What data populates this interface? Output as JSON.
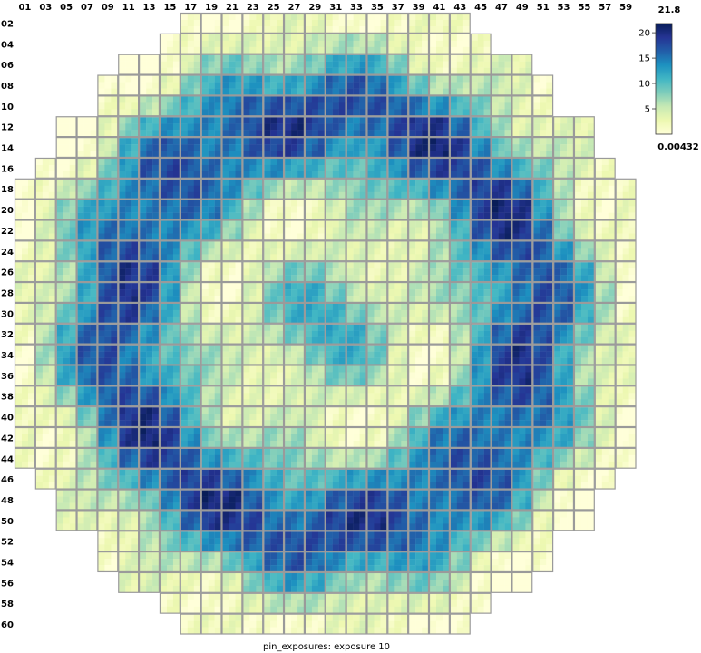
{
  "chart_data": {
    "type": "heatmap",
    "title": "pin_exposures: exposure 10",
    "columns": [
      "01",
      "03",
      "05",
      "07",
      "09",
      "11",
      "13",
      "15",
      "17",
      "19",
      "21",
      "23",
      "25",
      "27",
      "29",
      "31",
      "33",
      "35",
      "37",
      "39",
      "41",
      "43",
      "45",
      "47",
      "49",
      "51",
      "53",
      "55",
      "57",
      "59"
    ],
    "rows": [
      "02",
      "04",
      "06",
      "08",
      "10",
      "12",
      "14",
      "16",
      "18",
      "20",
      "22",
      "24",
      "26",
      "28",
      "30",
      "32",
      "34",
      "36",
      "38",
      "40",
      "42",
      "44",
      "46",
      "48",
      "50",
      "52",
      "54",
      "56",
      "58",
      "60"
    ],
    "row_spans": [
      [
        8,
        21
      ],
      [
        7,
        22
      ],
      [
        5,
        24
      ],
      [
        4,
        25
      ],
      [
        4,
        25
      ],
      [
        2,
        27
      ],
      [
        2,
        27
      ],
      [
        1,
        28
      ],
      [
        0,
        29
      ],
      [
        0,
        29
      ],
      [
        0,
        29
      ],
      [
        0,
        29
      ],
      [
        0,
        29
      ],
      [
        0,
        29
      ],
      [
        0,
        29
      ],
      [
        0,
        29
      ],
      [
        0,
        29
      ],
      [
        0,
        29
      ],
      [
        0,
        29
      ],
      [
        0,
        29
      ],
      [
        0,
        29
      ],
      [
        0,
        29
      ],
      [
        1,
        28
      ],
      [
        2,
        27
      ],
      [
        2,
        27
      ],
      [
        4,
        25
      ],
      [
        4,
        25
      ],
      [
        5,
        24
      ],
      [
        7,
        22
      ],
      [
        8,
        21
      ]
    ],
    "colorbar": {
      "max_label": "21.8",
      "min_label": "0.00432",
      "ticks": [
        5,
        10,
        15,
        20
      ],
      "range": [
        0.00432,
        21.8
      ],
      "colors": [
        "#ffffd9",
        "#edf8b1",
        "#c7e9b4",
        "#7fcdbb",
        "#41b6c4",
        "#1d91c0",
        "#225ea8",
        "#253494",
        "#081d58"
      ]
    },
    "grid": true,
    "colormap": "YlGnBu"
  }
}
